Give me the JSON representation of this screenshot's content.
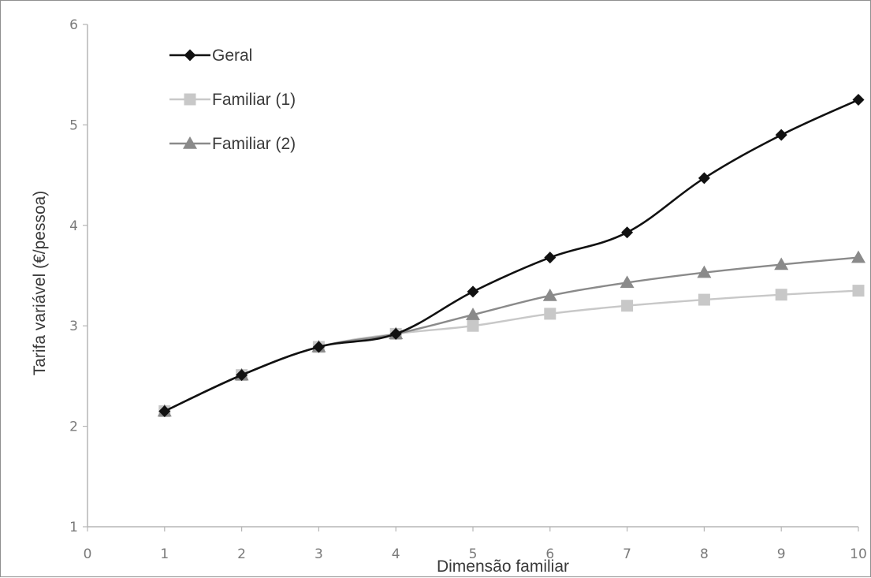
{
  "chart_data": {
    "type": "line",
    "title": "",
    "xlabel": "Dimensão familiar",
    "ylabel": "Tarifa variável (€/pessoa)",
    "xlim": [
      0,
      10
    ],
    "ylim": [
      1,
      6
    ],
    "x_ticks": [
      "0",
      "1",
      "2",
      "3",
      "4",
      "5",
      "6",
      "7",
      "8",
      "9",
      "10"
    ],
    "y_ticks": [
      "1",
      "2",
      "3",
      "4",
      "5",
      "6"
    ],
    "grid": false,
    "legend_position": "top-left",
    "x": [
      1,
      2,
      3,
      4,
      5,
      6,
      7,
      8,
      9,
      10
    ],
    "series": [
      {
        "name": "Geral",
        "values": [
          2.15,
          2.51,
          2.79,
          2.92,
          3.34,
          3.68,
          3.93,
          4.47,
          4.9,
          5.25
        ],
        "color": "#111111",
        "marker": "diamond"
      },
      {
        "name": "Familiar (1)",
        "values": [
          2.15,
          2.51,
          2.79,
          2.92,
          3.0,
          3.12,
          3.2,
          3.26,
          3.31,
          3.35
        ],
        "color": "#c8c8c8",
        "marker": "square"
      },
      {
        "name": "Familiar (2)",
        "values": [
          2.15,
          2.51,
          2.79,
          2.92,
          3.11,
          3.3,
          3.43,
          3.53,
          3.61,
          3.68
        ],
        "color": "#8a8a8a",
        "marker": "triangle"
      }
    ]
  }
}
